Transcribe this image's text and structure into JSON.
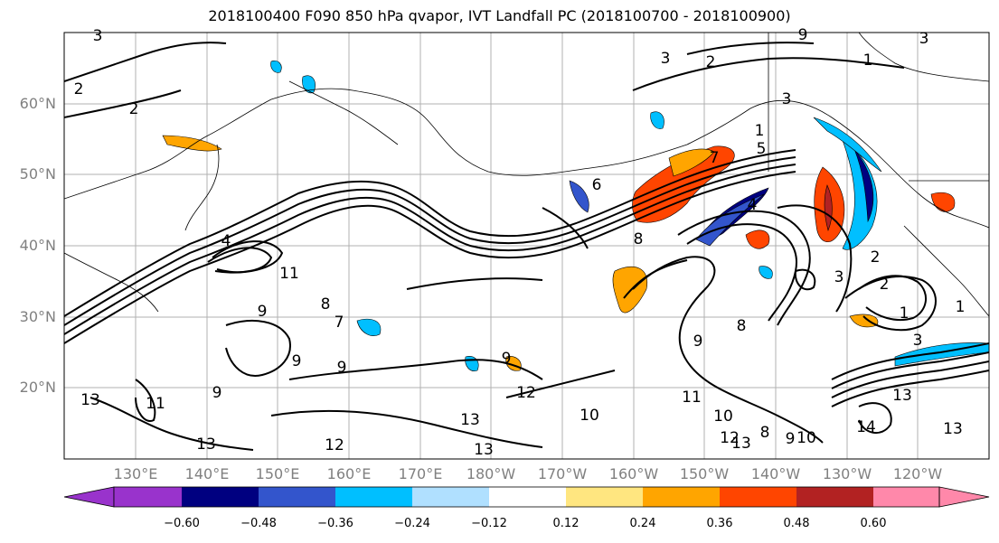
{
  "title": "2018100400 F090 850 hPa qvapor, IVT Landfall PC (2018100700 - 2018100900)",
  "lat_labels": [
    "60°N",
    "50°N",
    "40°N",
    "30°N",
    "20°N"
  ],
  "lon_labels": [
    "130°E",
    "140°E",
    "150°E",
    "160°E",
    "170°E",
    "180°W",
    "170°W",
    "160°W",
    "150°W",
    "140°W",
    "130°W",
    "120°W"
  ],
  "colorbar": {
    "tick_labels": [
      "−0.60",
      "−0.48",
      "−0.36",
      "−0.24",
      "−0.12",
      "0.12",
      "0.24",
      "0.36",
      "0.48",
      "0.60"
    ],
    "colors": [
      "#9933cc",
      "#000080",
      "#3355cc",
      "#00bfff",
      "#b0e0ff",
      "#ffffff",
      "#ffe680",
      "#ffa500",
      "#ff4500",
      "#b22222",
      "#ff88aa"
    ]
  },
  "contour_labels": [
    "2",
    "2",
    "3",
    "3",
    "2",
    "1",
    "9",
    "3",
    "4",
    "11",
    "9",
    "8",
    "7",
    "9",
    "9",
    "9",
    "11",
    "13",
    "13",
    "12",
    "13",
    "13",
    "12",
    "10",
    "8",
    "6",
    "4",
    "7",
    "5",
    "3",
    "1",
    "2",
    "8",
    "9",
    "10",
    "11",
    "12",
    "13",
    "8",
    "9",
    "10",
    "1",
    "2",
    "3",
    "13",
    "14",
    "13",
    "1",
    "3",
    "9"
  ]
}
